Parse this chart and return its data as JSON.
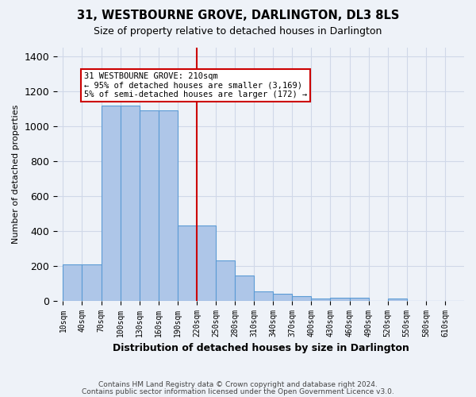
{
  "title": "31, WESTBOURNE GROVE, DARLINGTON, DL3 8LS",
  "subtitle": "Size of property relative to detached houses in Darlington",
  "xlabel": "Distribution of detached houses by size in Darlington",
  "ylabel": "Number of detached properties",
  "bar_labels": [
    "10sqm",
    "40sqm",
    "70sqm",
    "100sqm",
    "130sqm",
    "160sqm",
    "190sqm",
    "220sqm",
    "250sqm",
    "280sqm",
    "310sqm",
    "340sqm",
    "370sqm",
    "400sqm",
    "430sqm",
    "460sqm",
    "490sqm",
    "520sqm",
    "550sqm",
    "580sqm",
    "610sqm"
  ],
  "bar_values": [
    210,
    210,
    1120,
    1120,
    1090,
    1090,
    430,
    430,
    230,
    145,
    55,
    38,
    25,
    10,
    15,
    15,
    0,
    12,
    0,
    0,
    0
  ],
  "bar_color": "#aec6e8",
  "bar_edge_color": "#5b9bd5",
  "grid_color": "#d0d8e8",
  "background_color": "#eef2f8",
  "vline_color": "#cc0000",
  "vline_pos": 7.0,
  "annotation_text": "31 WESTBOURNE GROVE: 210sqm\n← 95% of detached houses are smaller (3,169)\n5% of semi-detached houses are larger (172) →",
  "annotation_box_color": "#cc0000",
  "footer_line1": "Contains HM Land Registry data © Crown copyright and database right 2024.",
  "footer_line2": "Contains public sector information licensed under the Open Government Licence v3.0.",
  "ylim": [
    0,
    1450
  ],
  "yticks": [
    0,
    200,
    400,
    600,
    800,
    1000,
    1200,
    1400
  ]
}
